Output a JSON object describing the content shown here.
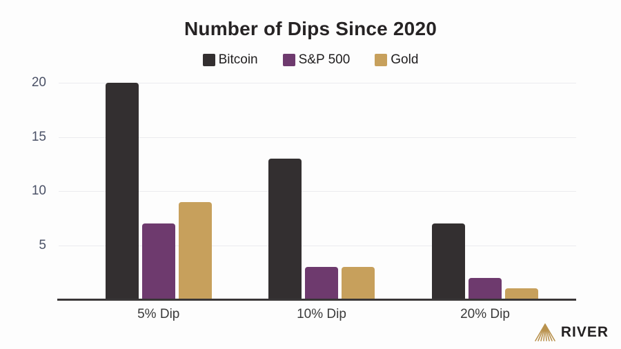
{
  "title": "Number of Dips Since 2020",
  "chart_data": {
    "type": "bar",
    "title": "Number of Dips Since 2020",
    "categories": [
      "5% Dip",
      "10% Dip",
      "20% Dip"
    ],
    "series": [
      {
        "name": "Bitcoin",
        "color": "#332f30",
        "values": [
          20,
          13,
          7
        ]
      },
      {
        "name": "S&P 500",
        "color": "#6e3a6e",
        "values": [
          7,
          3,
          2
        ]
      },
      {
        "name": "Gold",
        "color": "#c7a05c",
        "values": [
          9,
          3,
          1
        ]
      }
    ],
    "xlabel": "",
    "ylabel": "",
    "ylim": [
      0,
      20
    ],
    "yticks": [
      "20",
      "15",
      "10",
      "5"
    ],
    "ytick_values": [
      20,
      15,
      10,
      5
    ],
    "grid": "horizontal",
    "legend_position": "top-center",
    "group_centers_pct": [
      19.3,
      50.8,
      82.4
    ]
  },
  "colors": {
    "background": "#fdfdfd",
    "gridline": "#ebebee",
    "axis_line": "#3a3738",
    "ytick_text": "#4a5166",
    "xtick_text": "#3a3a3a",
    "title_text": "#262324",
    "logo_gold": "#b9924e",
    "logo_text": "#232021"
  },
  "branding": {
    "name": "RIVER",
    "mark": "fan-of-gold-lines-icon"
  }
}
